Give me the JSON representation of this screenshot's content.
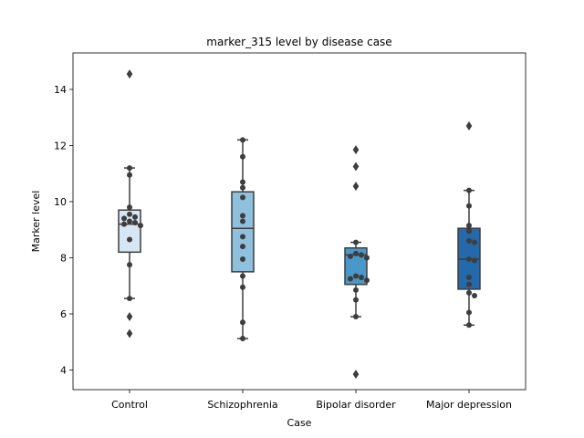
{
  "chart_data": {
    "type": "box",
    "title": "marker_315 level by disease case",
    "xlabel": "Case",
    "ylabel": "Marker level",
    "ylim": [
      3.3,
      15.3
    ],
    "yticks": [
      "4",
      "6",
      "8",
      "10",
      "12",
      "14"
    ],
    "grid": false,
    "categories": [
      "Control",
      "Schizophrenia",
      "Bipolar disorder",
      "Major depression"
    ],
    "colors": [
      "#d6e6f4",
      "#8fc1de",
      "#4a98c9",
      "#2469ab"
    ],
    "boxes": [
      {
        "q1": 8.2,
        "median": 9.2,
        "q3": 9.7,
        "whisker_low": 6.55,
        "whisker_high": 11.2,
        "fliers": [
          14.55,
          5.9,
          5.3
        ]
      },
      {
        "q1": 7.5,
        "median": 9.05,
        "q3": 10.35,
        "whisker_low": 5.12,
        "whisker_high": 12.2,
        "fliers": []
      },
      {
        "q1": 7.05,
        "median": 8.1,
        "q3": 8.35,
        "whisker_low": 5.9,
        "whisker_high": 8.55,
        "fliers": [
          11.85,
          11.25,
          10.55,
          3.85
        ]
      },
      {
        "q1": 6.88,
        "median": 7.95,
        "q3": 9.05,
        "whisker_low": 5.6,
        "whisker_high": 10.4,
        "fliers": [
          12.7
        ]
      }
    ],
    "points": [
      {
        "category": "Control",
        "values": [
          11.2,
          10.95,
          9.8,
          9.55,
          9.45,
          9.4,
          9.3,
          9.25,
          9.2,
          9.15,
          8.65,
          7.75,
          6.55
        ]
      },
      {
        "category": "Schizophrenia",
        "values": [
          12.2,
          11.6,
          10.7,
          10.5,
          10.15,
          9.5,
          9.3,
          8.75,
          8.4,
          7.95,
          7.35,
          6.95,
          5.7,
          5.12
        ]
      },
      {
        "category": "Bipolar disorder",
        "values": [
          8.55,
          8.15,
          8.1,
          8.05,
          8.0,
          7.35,
          7.3,
          7.25,
          7.2,
          6.85,
          6.5,
          5.9
        ]
      },
      {
        "category": "Major depression",
        "values": [
          10.4,
          9.85,
          9.15,
          8.95,
          8.6,
          8.55,
          7.95,
          7.9,
          7.3,
          7.05,
          6.75,
          6.65,
          6.05,
          5.6
        ]
      }
    ]
  }
}
